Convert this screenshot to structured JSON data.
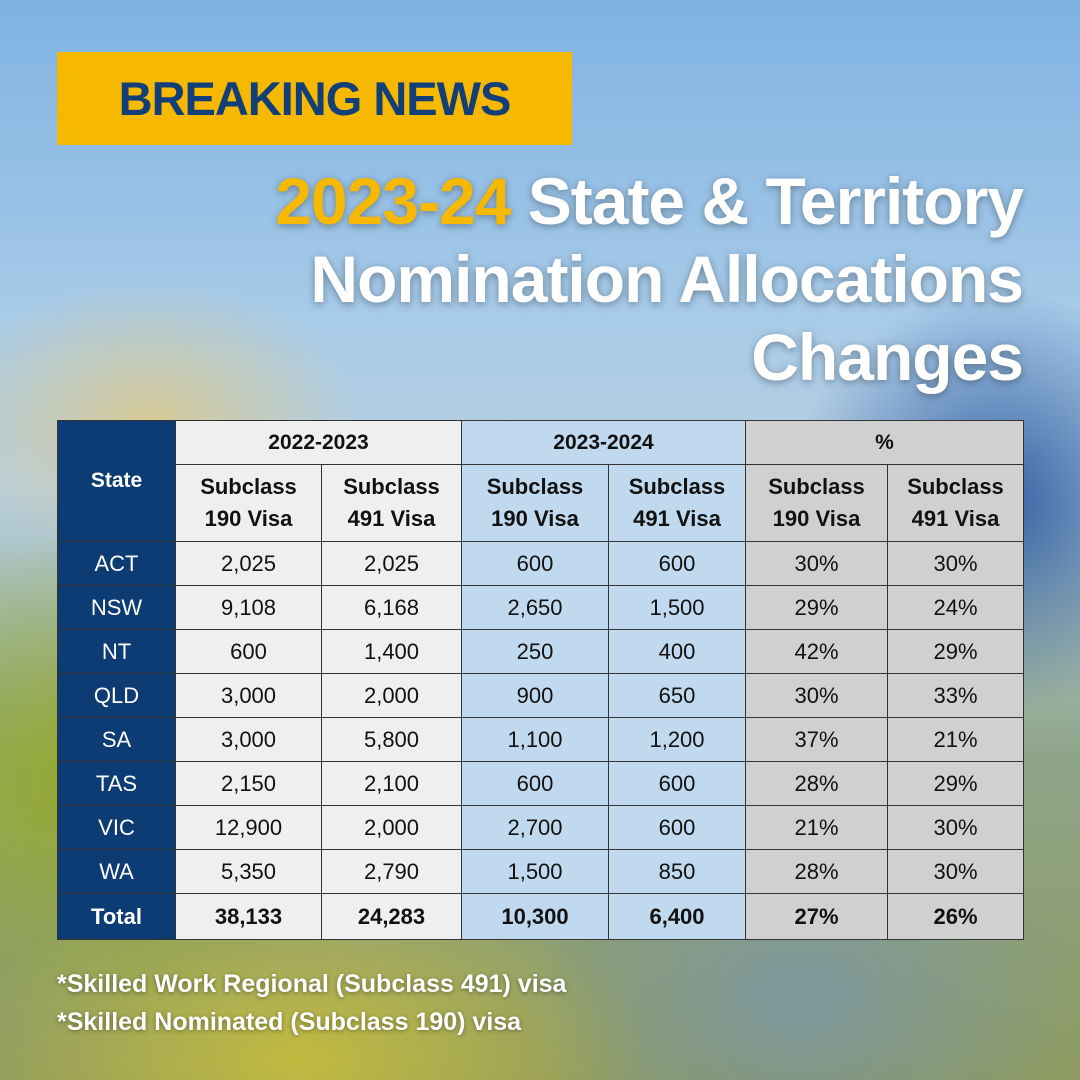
{
  "header": {
    "badge": "BREAKING NEWS",
    "title_highlight": "2023-24",
    "title_lines": [
      "State & Territory",
      "Nomination Allocations",
      "Changes"
    ]
  },
  "table": {
    "group_headers": [
      "State",
      "2022-2023",
      "2023-2024",
      "%"
    ],
    "sub_headers": [
      "Subclass 190 Visa",
      "Subclass 491 Visa",
      "Subclass 190 Visa",
      "Subclass 491 Visa",
      "Subclass 190 Visa",
      "Subclass 491 Visa"
    ],
    "rows": [
      [
        "ACT",
        "2,025",
        "2,025",
        "600",
        "600",
        "30%",
        "30%"
      ],
      [
        "NSW",
        "9,108",
        "6,168",
        "2,650",
        "1,500",
        "29%",
        "24%"
      ],
      [
        "NT",
        "600",
        "1,400",
        "250",
        "400",
        "42%",
        "29%"
      ],
      [
        "QLD",
        "3,000",
        "2,000",
        "900",
        "650",
        "30%",
        "33%"
      ],
      [
        "SA",
        "3,000",
        "5,800",
        "1,100",
        "1,200",
        "37%",
        "21%"
      ],
      [
        "TAS",
        "2,150",
        "2,100",
        "600",
        "600",
        "28%",
        "29%"
      ],
      [
        "VIC",
        "12,900",
        "2,000",
        "2,700",
        "600",
        "21%",
        "30%"
      ],
      [
        "WA",
        "5,350",
        "2,790",
        "1,500",
        "850",
        "28%",
        "30%"
      ]
    ],
    "total": [
      "Total",
      "38,133",
      "24,283",
      "10,300",
      "6,400",
      "27%",
      "26%"
    ]
  },
  "footnotes": [
    "*Skilled Work Regional (Subclass 491) visa",
    "*Skilled Nominated (Subclass 190) visa"
  ]
}
